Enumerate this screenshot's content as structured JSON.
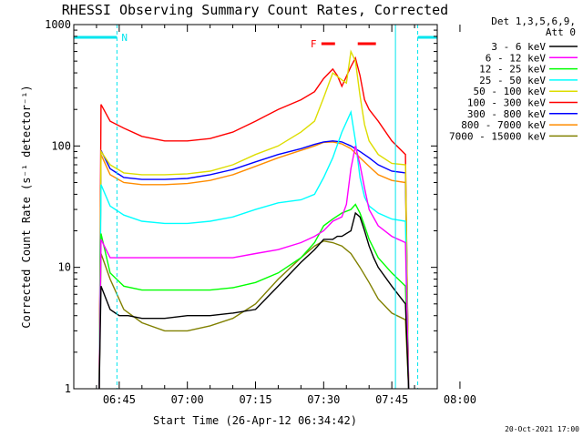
{
  "chart_data": {
    "type": "line",
    "title": "RHESSI Observing Summary Count Rates, Corrected",
    "xlabel": "Start Time (26-Apr-12 06:34:42)",
    "ylabel": "Corrected Count Rate (s⁻¹ detector⁻¹)",
    "y_scale": "log",
    "ylim": [
      1,
      1000
    ],
    "y_ticks": [
      1,
      10,
      100,
      1000
    ],
    "y_tick_labels": [
      "1",
      "10",
      "100",
      "1000"
    ],
    "xlim_minutes_after_0630": [
      5,
      85
    ],
    "x_tick_labels": [
      "06:45",
      "07:00",
      "07:15",
      "07:30",
      "07:45",
      "08:00"
    ],
    "x_tick_minutes_after_0630": [
      15,
      30,
      45,
      60,
      75,
      90
    ],
    "legend_header": [
      "Det 1,3,5,6,9,",
      "Att 0"
    ],
    "legend_placement": "right",
    "annotations": {
      "night_label": "N",
      "flare_label": "F",
      "flare_intervals_minutes": [
        [
          59.5,
          62.5
        ],
        [
          67.5,
          71.5
        ]
      ],
      "night_intervals_minutes": [
        [
          5,
          14.5
        ],
        [
          80.7,
          85
        ]
      ],
      "night_boundary_minutes": [
        14.5,
        75.8,
        80.7
      ]
    },
    "observation_window_minutes": [
      10.6,
      78.7
    ],
    "timestamp": "20-Oct-2021 17:00",
    "series": [
      {
        "name": "3 - 6 keV",
        "color": "#000000",
        "x": [
          10.6,
          11,
          13,
          15,
          17,
          20,
          25,
          30,
          35,
          40,
          45,
          50,
          55,
          58,
          60,
          62,
          63,
          64,
          66,
          67,
          68,
          69,
          70,
          71,
          72,
          75,
          78,
          78.7
        ],
        "values": [
          1,
          7,
          4.5,
          4,
          4,
          3.8,
          3.8,
          4,
          4,
          4.2,
          4.5,
          7,
          11,
          14,
          17,
          17,
          18,
          18,
          20,
          28,
          26,
          20,
          15,
          12,
          10,
          7,
          5,
          1
        ]
      },
      {
        "name": "6 - 12 keV",
        "color": "#ff00ff",
        "x": [
          10.6,
          11,
          13,
          16,
          20,
          25,
          30,
          35,
          40,
          45,
          50,
          55,
          58,
          60,
          62,
          64,
          65,
          66,
          67,
          68,
          69,
          70,
          72,
          75,
          78,
          78.7
        ],
        "values": [
          1,
          17,
          12,
          12,
          12,
          12,
          12,
          12,
          12,
          13,
          14,
          16,
          18,
          20,
          24,
          26,
          33,
          65,
          100,
          70,
          45,
          30,
          22,
          18,
          16,
          1
        ]
      },
      {
        "name": "12 - 25 keV",
        "color": "#00ff00",
        "x": [
          10.6,
          11,
          13,
          16,
          20,
          25,
          30,
          35,
          40,
          45,
          50,
          55,
          58,
          60,
          62,
          64,
          66,
          67,
          68,
          69,
          70,
          72,
          75,
          78,
          78.7
        ],
        "values": [
          1,
          19,
          9,
          7,
          6.5,
          6.5,
          6.5,
          6.5,
          6.8,
          7.5,
          9,
          12,
          16,
          22,
          25,
          28,
          30,
          33,
          28,
          22,
          17,
          12,
          9,
          7,
          1
        ]
      },
      {
        "name": "25 - 50 keV",
        "color": "#00ffff",
        "x": [
          10.6,
          11,
          13,
          16,
          20,
          25,
          30,
          35,
          40,
          45,
          50,
          55,
          58,
          60,
          62,
          64,
          66,
          67,
          68,
          69,
          70,
          72,
          75,
          78,
          78.7
        ],
        "values": [
          1,
          48,
          32,
          27,
          24,
          23,
          23,
          24,
          26,
          30,
          34,
          36,
          40,
          55,
          80,
          130,
          190,
          110,
          55,
          38,
          32,
          28,
          25,
          24,
          1
        ]
      },
      {
        "name": "50 - 100 keV",
        "color": "#dddd00",
        "x": [
          10.6,
          11,
          13,
          16,
          20,
          25,
          30,
          35,
          40,
          45,
          50,
          55,
          58,
          60,
          62,
          64,
          65,
          66,
          67,
          68,
          69,
          70,
          72,
          75,
          78,
          78.7
        ],
        "values": [
          1,
          90,
          70,
          60,
          58,
          58,
          59,
          62,
          70,
          85,
          100,
          130,
          160,
          250,
          400,
          350,
          330,
          600,
          500,
          260,
          150,
          110,
          85,
          72,
          70,
          1
        ]
      },
      {
        "name": "100 - 300 keV",
        "color": "#ff0000",
        "x": [
          10.6,
          11,
          13,
          16,
          20,
          25,
          30,
          35,
          40,
          45,
          50,
          55,
          58,
          60,
          62,
          63,
          64,
          66,
          67,
          68,
          69,
          70,
          72,
          75,
          78,
          78.7
        ],
        "values": [
          1,
          220,
          160,
          140,
          120,
          110,
          110,
          115,
          130,
          160,
          200,
          240,
          280,
          360,
          430,
          380,
          310,
          450,
          530,
          380,
          240,
          200,
          160,
          110,
          85,
          1
        ]
      },
      {
        "name": "300 - 800 keV",
        "color": "#0000ff",
        "x": [
          10.6,
          11,
          13,
          16,
          20,
          25,
          30,
          35,
          40,
          45,
          50,
          55,
          58,
          60,
          62,
          64,
          66,
          68,
          70,
          72,
          75,
          78,
          78.7
        ],
        "values": [
          1,
          92,
          65,
          55,
          53,
          53,
          54,
          58,
          64,
          74,
          85,
          95,
          103,
          108,
          110,
          108,
          100,
          90,
          80,
          70,
          62,
          60,
          1
        ]
      },
      {
        "name": "800 - 7000 keV",
        "color": "#ff8c00",
        "x": [
          10.6,
          11,
          13,
          16,
          20,
          25,
          30,
          35,
          40,
          45,
          50,
          55,
          58,
          60,
          62,
          64,
          66,
          68,
          70,
          72,
          75,
          78,
          78.7
        ],
        "values": [
          1,
          85,
          58,
          50,
          48,
          48,
          49,
          52,
          58,
          68,
          80,
          92,
          100,
          107,
          108,
          104,
          95,
          80,
          68,
          58,
          52,
          50,
          1
        ]
      },
      {
        "name": "7000 - 15000 keV",
        "color": "#808000",
        "x": [
          10.6,
          11,
          13,
          16,
          20,
          25,
          30,
          35,
          40,
          45,
          50,
          55,
          58,
          60,
          62,
          64,
          66,
          68,
          70,
          72,
          75,
          78,
          78.7
        ],
        "values": [
          1,
          13,
          8,
          4.5,
          3.5,
          3,
          3,
          3.3,
          3.8,
          5,
          8,
          12,
          15,
          16.5,
          16,
          15,
          13,
          10,
          7.5,
          5.5,
          4.2,
          3.7,
          1
        ]
      }
    ]
  }
}
